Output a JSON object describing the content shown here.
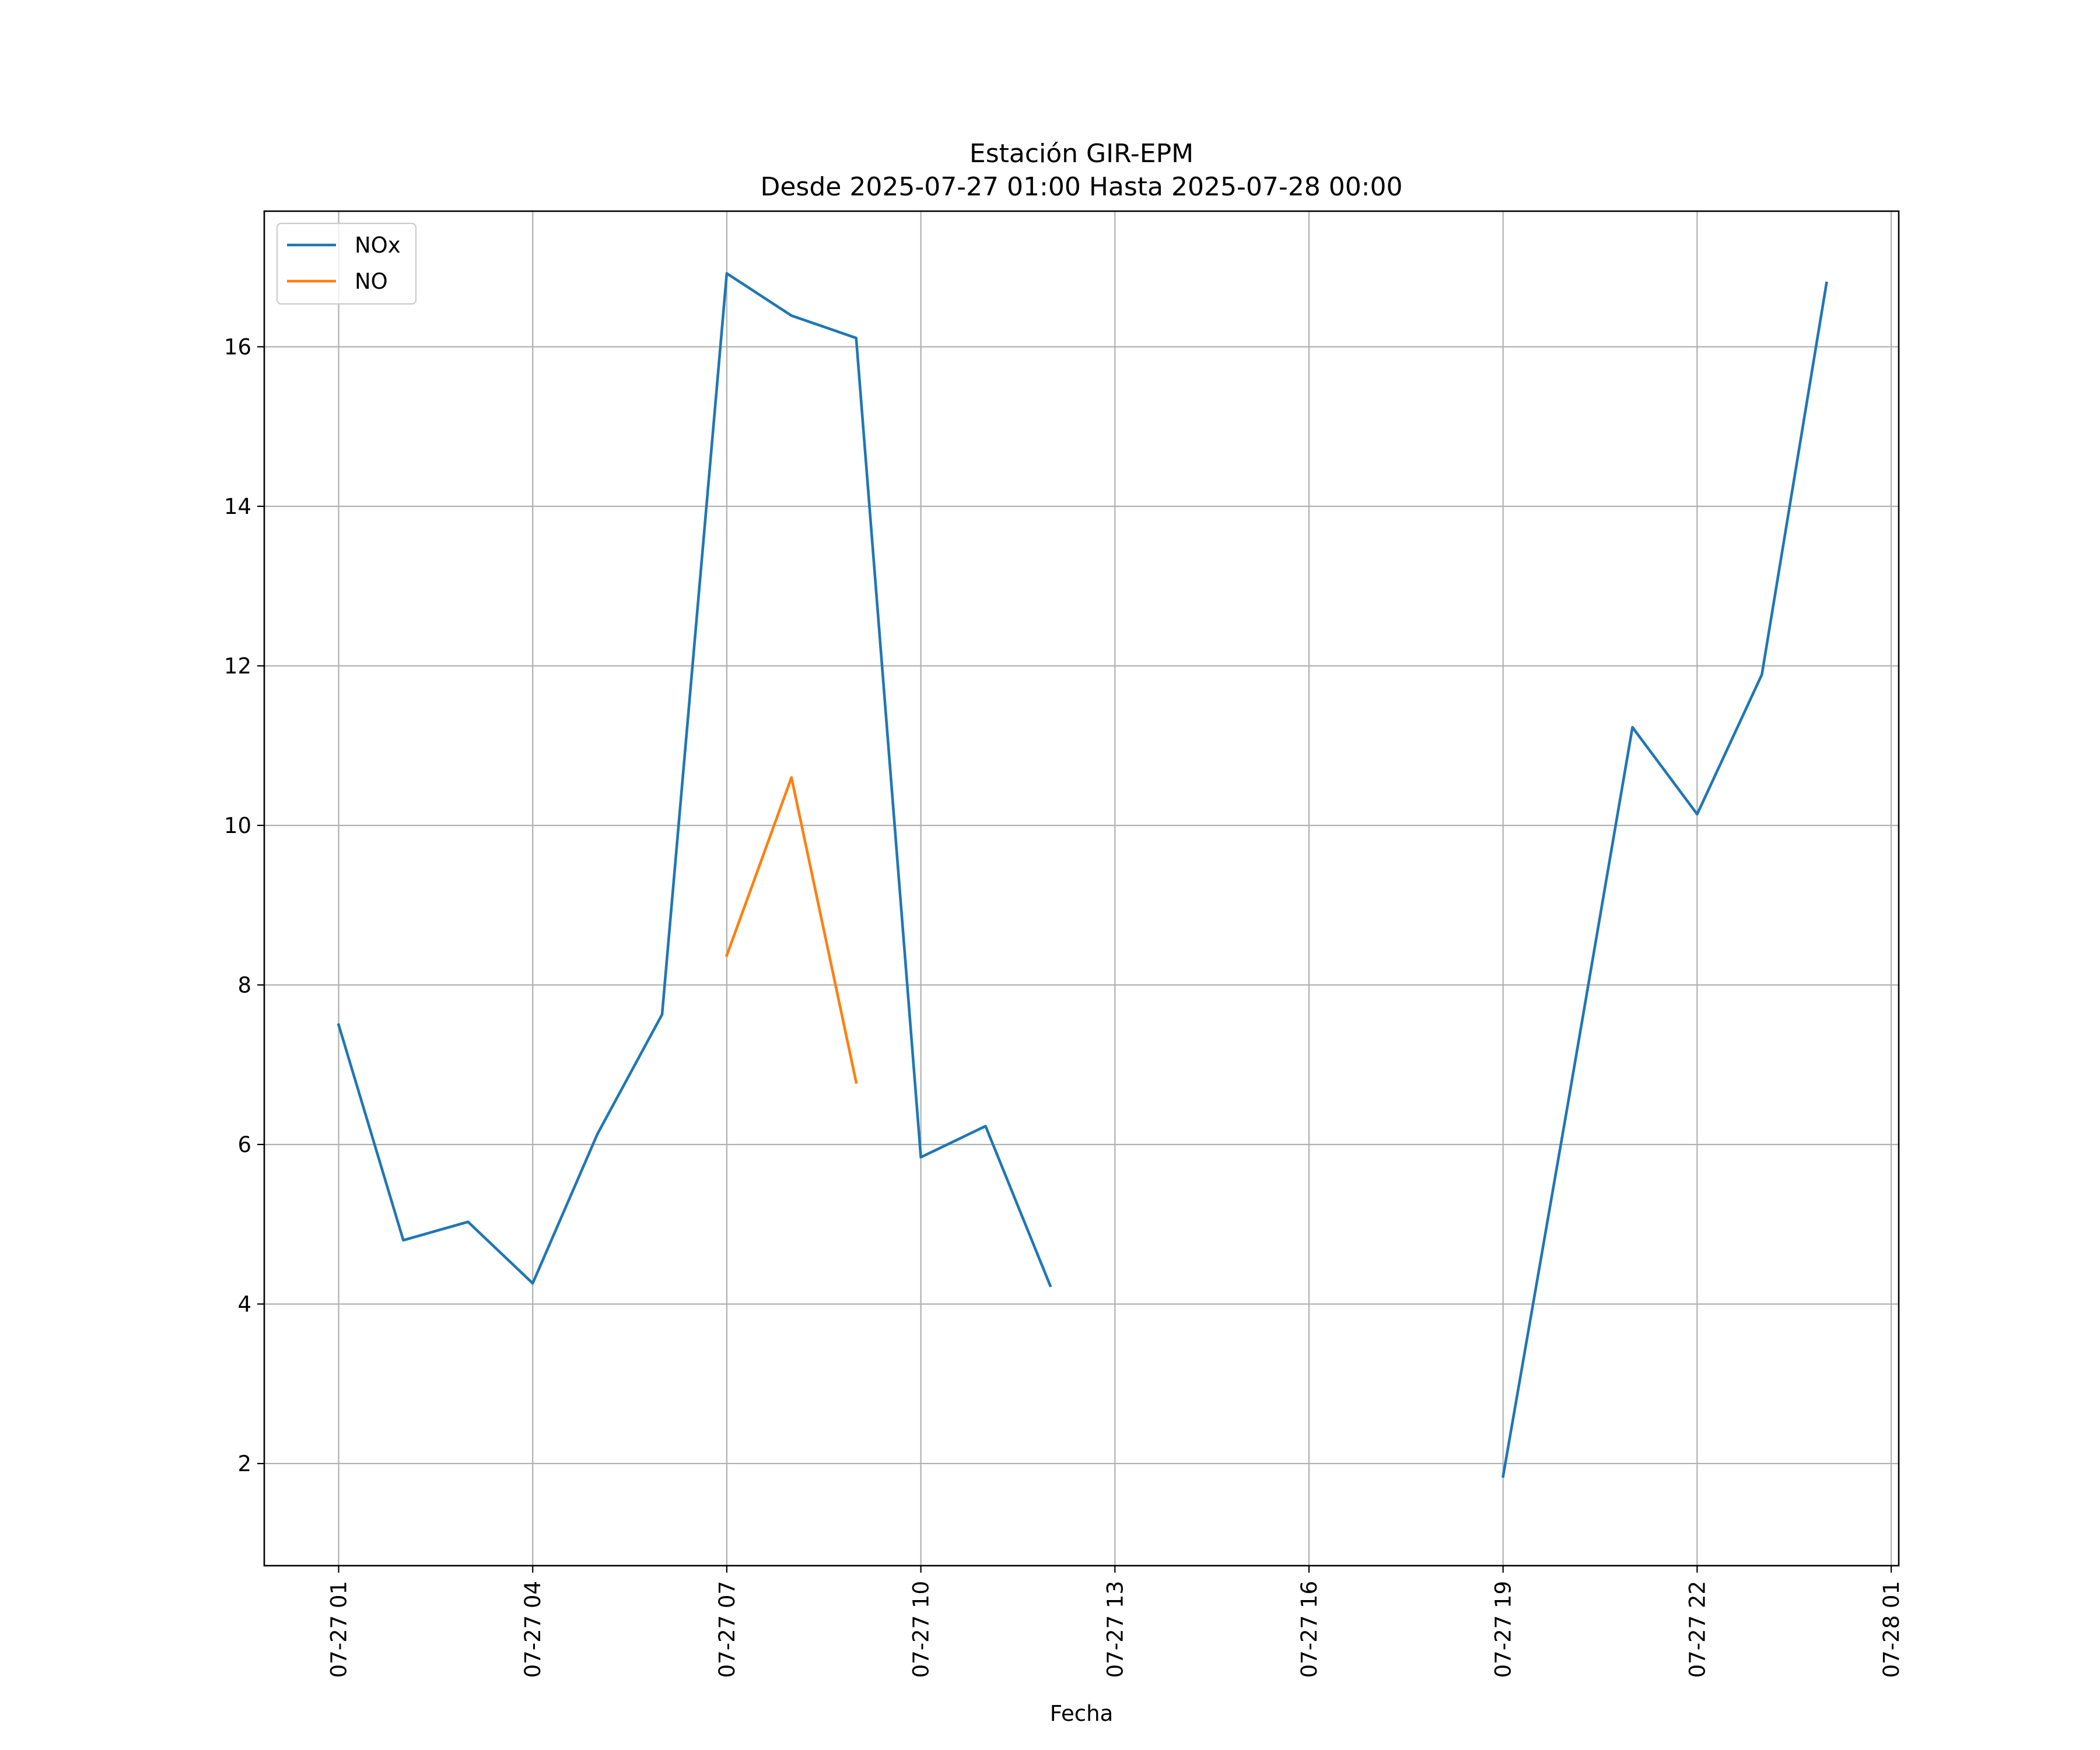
{
  "chart_data": {
    "type": "line",
    "title": "Estación GIR-EPM",
    "subtitle": "Desde 2025-07-27 01:00 Hasta 2025-07-28 00:00",
    "xlabel": "Fecha",
    "ylabel": "",
    "x": [
      "2025-07-27 01:00",
      "2025-07-27 02:00",
      "2025-07-27 03:00",
      "2025-07-27 04:00",
      "2025-07-27 05:00",
      "2025-07-27 06:00",
      "2025-07-27 07:00",
      "2025-07-27 08:00",
      "2025-07-27 09:00",
      "2025-07-27 10:00",
      "2025-07-27 11:00",
      "2025-07-27 12:00",
      "2025-07-27 13:00",
      "2025-07-27 14:00",
      "2025-07-27 15:00",
      "2025-07-27 16:00",
      "2025-07-27 17:00",
      "2025-07-27 18:00",
      "2025-07-27 19:00",
      "2025-07-27 20:00",
      "2025-07-27 21:00",
      "2025-07-27 22:00",
      "2025-07-27 23:00",
      "2025-07-28 00:00"
    ],
    "series": [
      {
        "name": "NOx",
        "color": "#1f77b4",
        "values": [
          7.5,
          4.8,
          5.03,
          4.26,
          6.13,
          7.63,
          16.92,
          16.39,
          16.11,
          5.84,
          6.23,
          4.23,
          null,
          null,
          null,
          null,
          null,
          null,
          1.84,
          6.5,
          11.23,
          10.14,
          11.89,
          16.8
        ]
      },
      {
        "name": "NO",
        "color": "#ff7f0e",
        "values": [
          null,
          null,
          null,
          null,
          null,
          null,
          8.37,
          10.6,
          6.78,
          null,
          null,
          null,
          null,
          null,
          null,
          null,
          null,
          null,
          null,
          null,
          null,
          null,
          null,
          null
        ]
      }
    ],
    "xticks": [
      {
        "label": "07-27 01",
        "t": "2025-07-27 01:00"
      },
      {
        "label": "07-27 04",
        "t": "2025-07-27 04:00"
      },
      {
        "label": "07-27 07",
        "t": "2025-07-27 07:00"
      },
      {
        "label": "07-27 10",
        "t": "2025-07-27 10:00"
      },
      {
        "label": "07-27 13",
        "t": "2025-07-27 13:00"
      },
      {
        "label": "07-27 16",
        "t": "2025-07-27 16:00"
      },
      {
        "label": "07-27 19",
        "t": "2025-07-27 19:00"
      },
      {
        "label": "07-27 22",
        "t": "2025-07-27 22:00"
      },
      {
        "label": "07-28 01",
        "t": "2025-07-28 01:00"
      }
    ],
    "yticks": [
      2,
      4,
      6,
      8,
      10,
      12,
      14,
      16
    ],
    "xlim": [
      "2025-07-26 23:51",
      "2025-07-28 01:07"
    ],
    "ylim": [
      0.72,
      17.7
    ],
    "grid": true,
    "legend": "upper left"
  }
}
